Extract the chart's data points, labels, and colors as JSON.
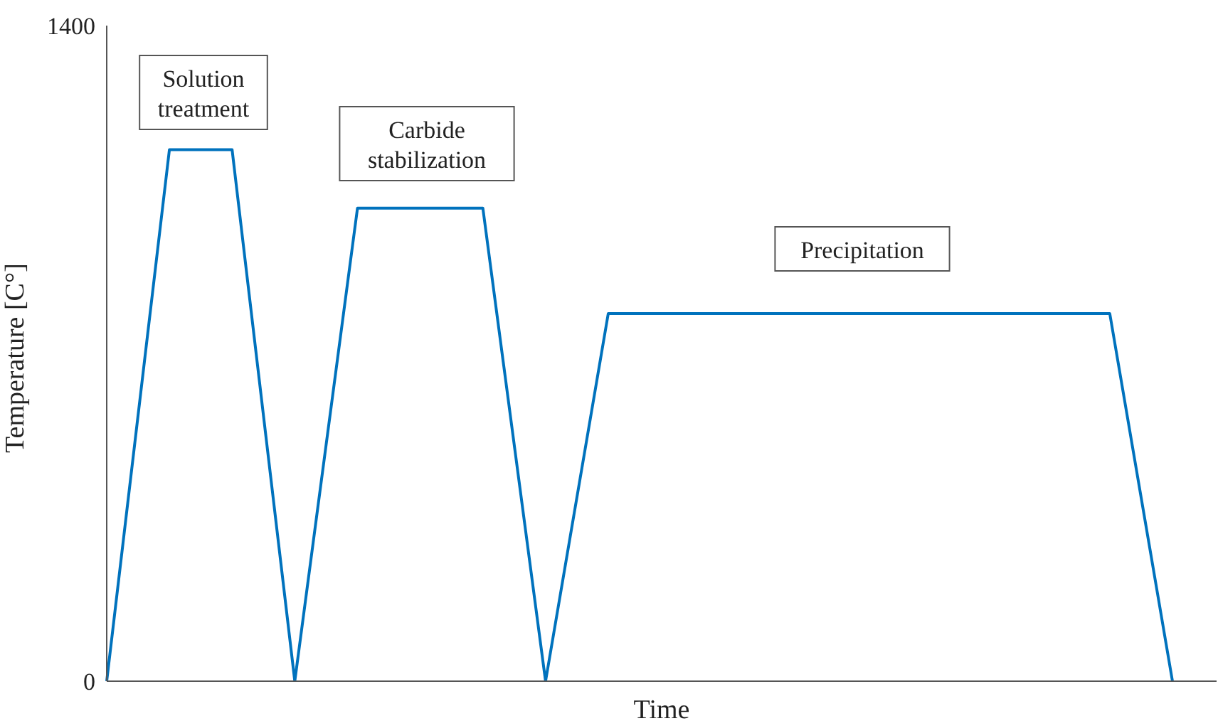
{
  "chart_data": {
    "type": "line",
    "xlabel": "Time",
    "ylabel": "Temperature [C°]",
    "ylim": [
      0,
      1400
    ],
    "yticks": [
      0,
      1400
    ],
    "grid": false,
    "legend": false,
    "marker": "none",
    "line_style": "solid",
    "categories": [
      null,
      null,
      null,
      null,
      null,
      null,
      null,
      null,
      null,
      null,
      null,
      null,
      null,
      null,
      null,
      null,
      null,
      null
    ],
    "series": [
      {
        "color": "#0072bd",
        "values": [
          0,
          1135,
          1135,
          0,
          1010,
          1010,
          1010,
          0,
          785,
          785,
          785,
          785,
          785,
          785,
          785,
          785,
          785,
          0
        ]
      }
    ],
    "annotations": [
      "Solution\ntreatment",
      "Carbide\nstabilization",
      "Precipitation"
    ]
  }
}
